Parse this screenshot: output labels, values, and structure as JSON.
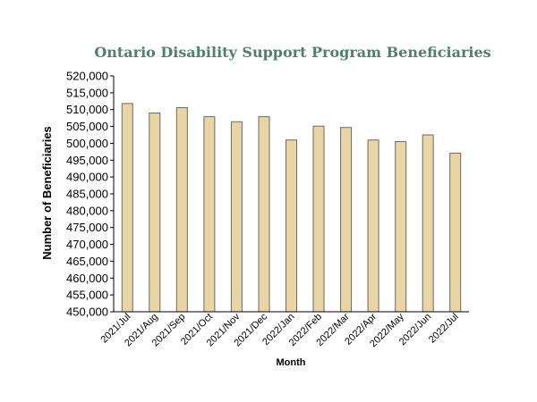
{
  "chart_data": {
    "type": "bar",
    "title": "Ontario Disability Support Program Beneficiaries",
    "xlabel": "Month",
    "ylabel": "Number of Beneficiaries",
    "categories": [
      "2021/Jul",
      "2021/Aug",
      "2021/Sep",
      "2021/Oct",
      "2021/Nov",
      "2021/Dec",
      "2022/Jan",
      "2022/Feb",
      "2022/Mar",
      "2022/Apr",
      "2022/May",
      "2022/Jun",
      "2022/Jul"
    ],
    "values": [
      511800,
      509000,
      510600,
      507900,
      506400,
      507900,
      501000,
      505100,
      504700,
      501000,
      500500,
      502500,
      497100
    ],
    "ylim": [
      450000,
      520000
    ],
    "yticks": [
      450000,
      455000,
      460000,
      465000,
      470000,
      475000,
      480000,
      485000,
      490000,
      495000,
      500000,
      505000,
      510000,
      515000,
      520000
    ],
    "ytick_labels": [
      "450,000",
      "455,000",
      "460,000",
      "465,000",
      "470,000",
      "475,000",
      "480,000",
      "485,000",
      "490,000",
      "495,000",
      "500,000",
      "505,000",
      "510,000",
      "515,000",
      "520,000"
    ],
    "grid": false,
    "legend": "none",
    "colors": {
      "bar_fill": "#e8d5a3",
      "bar_stroke": "#6b6b5e",
      "title": "#4f7f71",
      "axis": "#000000"
    }
  }
}
